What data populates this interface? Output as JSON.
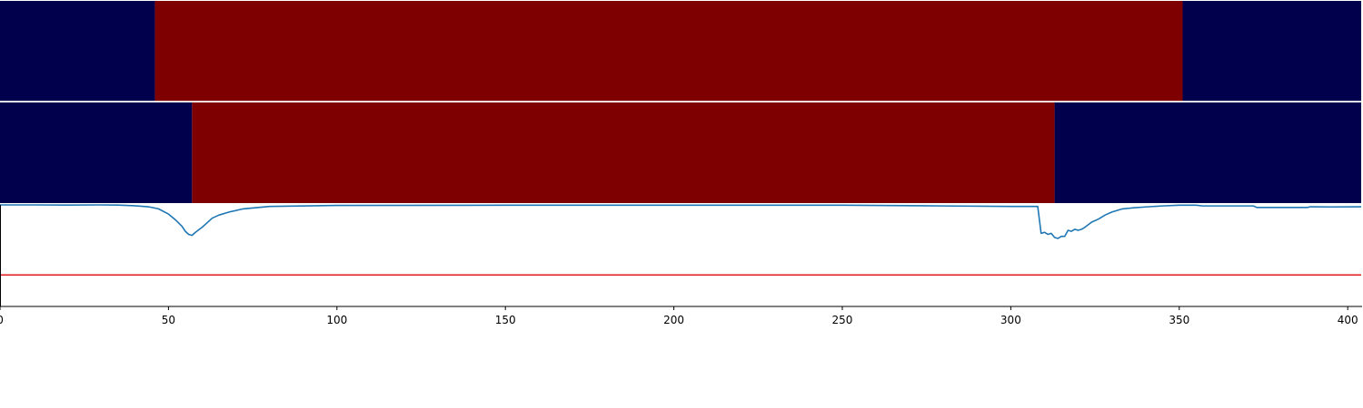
{
  "chart_data": {
    "type": "line",
    "colors": {
      "background": "#00004c",
      "segment": "#7f0000",
      "line": "#1f77b4",
      "threshold": "#e31a1c",
      "axis": "#000000",
      "separator": "#ffffff"
    },
    "xlim": [
      0,
      404
    ],
    "ylim": [
      0,
      1
    ],
    "xticks": [
      0,
      50,
      100,
      150,
      200,
      250,
      300,
      350,
      400
    ],
    "xtick_labels": [
      "0",
      "50",
      "100",
      "150",
      "200",
      "250",
      "300",
      "350",
      "400"
    ],
    "label_rows": [
      {
        "segments": [
          {
            "start": 0,
            "end": 46,
            "class": "background"
          },
          {
            "start": 46,
            "end": 351,
            "class": "segment"
          },
          {
            "start": 351,
            "end": 404,
            "class": "background"
          }
        ]
      },
      {
        "segments": [
          {
            "start": 0,
            "end": 57,
            "class": "background"
          },
          {
            "start": 57,
            "end": 313,
            "class": "segment"
          },
          {
            "start": 313,
            "end": 404,
            "class": "background"
          }
        ]
      }
    ],
    "threshold": 0.31,
    "series": [
      {
        "x": [
          0,
          10,
          20,
          30,
          35,
          40,
          44,
          47,
          50,
          52,
          54,
          55,
          56,
          57,
          58,
          60,
          61,
          62,
          63,
          65,
          68,
          72,
          80,
          100,
          150,
          200,
          250,
          280,
          300,
          308,
          309,
          310,
          311,
          312,
          313,
          314,
          315,
          316,
          317,
          318,
          319,
          320,
          321,
          322,
          324,
          326,
          328,
          330,
          333,
          336,
          340,
          345,
          350,
          355,
          357,
          365,
          372,
          373,
          380,
          388,
          389,
          395,
          404
        ],
        "y": [
          1.0,
          1.0,
          0.998,
          1.0,
          0.998,
          0.992,
          0.982,
          0.962,
          0.91,
          0.855,
          0.79,
          0.74,
          0.71,
          0.7,
          0.73,
          0.78,
          0.81,
          0.84,
          0.87,
          0.9,
          0.93,
          0.96,
          0.985,
          0.995,
          0.997,
          0.997,
          0.997,
          0.99,
          0.985,
          0.985,
          0.72,
          0.73,
          0.71,
          0.72,
          0.68,
          0.67,
          0.69,
          0.69,
          0.75,
          0.74,
          0.76,
          0.75,
          0.76,
          0.78,
          0.83,
          0.86,
          0.9,
          0.93,
          0.96,
          0.97,
          0.98,
          0.99,
          0.997,
          0.997,
          0.99,
          0.99,
          0.99,
          0.975,
          0.975,
          0.975,
          0.982,
          0.98,
          0.982
        ]
      }
    ]
  }
}
